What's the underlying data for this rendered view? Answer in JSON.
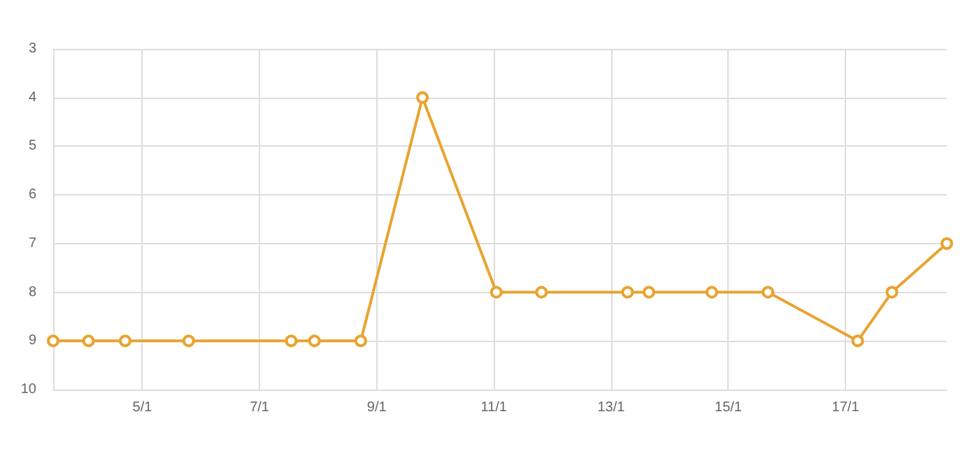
{
  "chart_data": {
    "type": "line",
    "x": [
      "--01-03T11:30",
      "--01-04T02:00",
      "--01-04T17:00",
      "--01-05T19:00",
      "--01-07T13:00",
      "--01-07T22:30",
      "--01-08T17:30",
      "--01-09T18:45",
      "--01-11T01:00",
      "--01-11T19:30",
      "--01-13T06:45",
      "--01-13T15:30",
      "--01-14T17:15",
      "--01-15T16:15",
      "--01-17T05:00",
      "--01-17T19:00",
      "--01-18T17:30"
    ],
    "series": [
      {
        "color": "#e8a430",
        "values": [
          9,
          9,
          9,
          9,
          9,
          9,
          9,
          4,
          8,
          8,
          8,
          8,
          8,
          8,
          9,
          8,
          7
        ]
      }
    ],
    "xlim": [
      "--01-03T11:30",
      "--01-18T17:30"
    ],
    "xticks": [
      {
        "value": "--01-05",
        "label": "5/1"
      },
      {
        "value": "--01-07",
        "label": "7/1"
      },
      {
        "value": "--01-09",
        "label": "9/1"
      },
      {
        "value": "--01-11",
        "label": "11/1"
      },
      {
        "value": "--01-13",
        "label": "13/1"
      },
      {
        "value": "--01-15",
        "label": "15/1"
      },
      {
        "value": "--01-17",
        "label": "17/1"
      }
    ],
    "ylim": [
      10,
      3
    ],
    "yticks": [
      3,
      4,
      5,
      6,
      7,
      8,
      9,
      10
    ],
    "grid": true,
    "marker": "circle",
    "line_style": "solid"
  }
}
